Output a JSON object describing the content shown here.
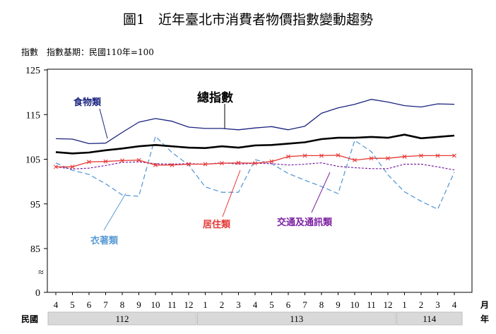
{
  "chart_data": {
    "type": "line",
    "title": "圖1　近年臺北市消費者物價指數變動趨勢",
    "subtitle": "指數　指數基期：民國110年=100",
    "y_ticks": [
      "0",
      "85",
      "95",
      "105",
      "115",
      "125"
    ],
    "y_tick_values": [
      0,
      85,
      95,
      105,
      115,
      125
    ],
    "ylim": [
      0,
      125
    ],
    "axis_break": "≈",
    "x_month_labels": [
      "4",
      "5",
      "6",
      "7",
      "8",
      "9",
      "10",
      "11",
      "12",
      "1",
      "2",
      "3",
      "4",
      "5",
      "6",
      "7",
      "8",
      "9",
      "10",
      "11",
      "12",
      "1",
      "2",
      "3",
      "4"
    ],
    "x_unit_label": "月",
    "year_axis_label": "民國",
    "year_axis_unit": "年",
    "year_groups": [
      {
        "label": "112",
        "start": 0,
        "end": 8
      },
      {
        "label": "113",
        "start": 9,
        "end": 20
      },
      {
        "label": "114",
        "start": 21,
        "end": 24
      }
    ],
    "grid": false,
    "series": [
      {
        "name": "食物類",
        "color": "#1a237e",
        "dash": "",
        "width": 1.3,
        "marker": "",
        "values": [
          109.6,
          109.5,
          108.5,
          108.6,
          111,
          113.3,
          114.1,
          113.5,
          112.2,
          111.9,
          111.9,
          111.6,
          112,
          112.3,
          111.6,
          112.4,
          115.3,
          116.5,
          117.3,
          118.4,
          117.8,
          117,
          116.7,
          117.4,
          117.3
        ]
      },
      {
        "name": "總指數",
        "color": "#000000",
        "dash": "",
        "width": 2.6,
        "marker": "",
        "values": [
          106.6,
          106.3,
          106.5,
          107,
          107.4,
          107.9,
          108.2,
          107.9,
          107.6,
          107.5,
          107.9,
          107.6,
          108.1,
          108.2,
          108.5,
          108.8,
          109.5,
          109.8,
          109.8,
          110,
          109.8,
          110.5,
          109.7,
          110,
          110.3
        ]
      },
      {
        "name": "居住類",
        "color": "#e53935",
        "dash": "",
        "width": 1.3,
        "marker": "x",
        "values": [
          103.3,
          103.3,
          104.4,
          104.5,
          104.7,
          104.8,
          103.7,
          103.7,
          103.9,
          103.9,
          104.1,
          104.2,
          104.1,
          104.5,
          105.6,
          105.8,
          105.8,
          105.9,
          104.8,
          105.2,
          105.2,
          105.6,
          105.8,
          105.8,
          105.8
        ]
      },
      {
        "name": "交通及通訊類",
        "color": "#7b1fa2",
        "dash": "3,2",
        "width": 1.2,
        "marker": "",
        "values": [
          103.3,
          102.8,
          103,
          103.6,
          104.3,
          104.4,
          104,
          103.9,
          104,
          103.9,
          104.2,
          103.9,
          104.1,
          104,
          103.7,
          103.9,
          104.2,
          103.4,
          103.1,
          102.9,
          102.9,
          103.9,
          103.9,
          103.3,
          102.6
        ]
      },
      {
        "name": "衣著類",
        "color": "#5b9bd5",
        "dash": "7,4",
        "width": 1.3,
        "marker": "",
        "values": [
          104.2,
          102.5,
          101.6,
          99.5,
          97,
          96.7,
          110.1,
          106.5,
          103.7,
          98.8,
          97.6,
          97.6,
          104.9,
          104,
          101.8,
          100.3,
          98.9,
          97.3,
          109.2,
          106.7,
          101.5,
          97.7,
          95.6,
          93.8,
          102.1
        ]
      }
    ],
    "label_colors": {
      "食物類": "#1a237e",
      "總指數": "#000000",
      "居住類": "#e53935",
      "交通及通訊類": "#7b1fa2",
      "衣著類": "#5b9bd5"
    }
  }
}
